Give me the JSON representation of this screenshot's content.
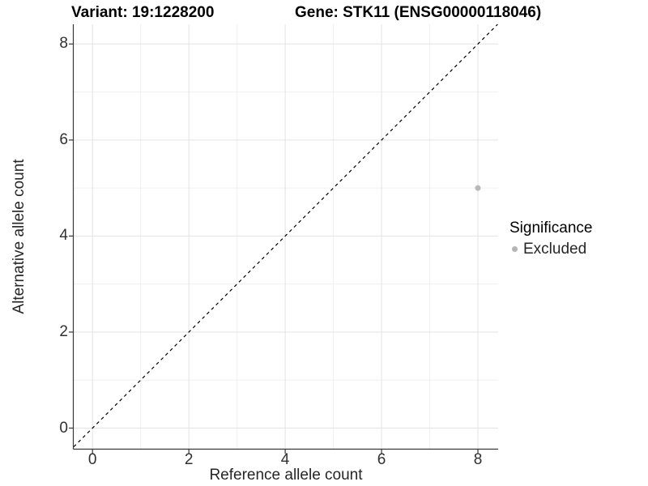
{
  "chart_data": {
    "type": "scatter",
    "titles": {
      "left": "Variant: 19:1228200",
      "right": "Gene: STK11 (ENSG00000118046)"
    },
    "xlabel": "Reference allele count",
    "ylabel": "Alternative allele count",
    "x_ticks": [
      0,
      2,
      4,
      6,
      8
    ],
    "y_ticks": [
      0,
      2,
      4,
      6,
      8
    ],
    "x_minor": [
      1,
      3,
      5,
      7
    ],
    "y_minor": [
      1,
      3,
      5,
      7
    ],
    "xlim": [
      -0.39,
      8.42
    ],
    "ylim": [
      -0.43,
      8.41
    ],
    "grid": true,
    "legend": {
      "title": "Significance",
      "position": "right",
      "entries": [
        {
          "label": "Excluded",
          "color": "#b5b5b5"
        }
      ]
    },
    "series": [
      {
        "name": "Excluded",
        "color": "#b9b9b9",
        "point_radius": 3.5,
        "points": [
          {
            "x": 8,
            "y": 5
          }
        ]
      }
    ],
    "reference_line": {
      "kind": "identity",
      "style": "dashed",
      "color": "#000000"
    },
    "colors": {
      "background": "#ffffff",
      "grid_major": "#e3e3e3",
      "grid_minor": "#f0f0f0",
      "axis_line": "#383838",
      "tick_mark": "#383838"
    }
  }
}
